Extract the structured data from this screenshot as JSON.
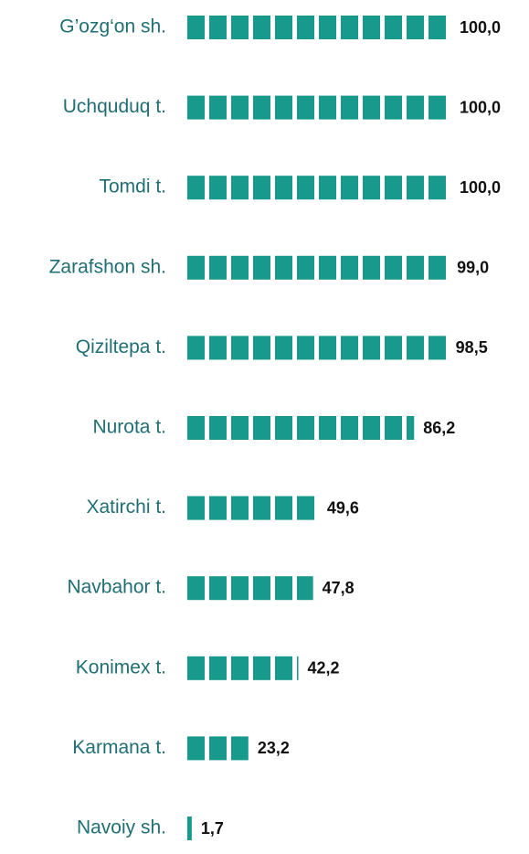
{
  "chart_data": {
    "type": "bar",
    "categories": [
      "G’ozg‘on sh.",
      "Uchquduq t.",
      "Tomdi t.",
      "Zarafshon sh.",
      "Qiziltepa t.",
      "Nurota t.",
      "Xatirchi t.",
      "Navbahor t.",
      "Konimex t.",
      "Karmana t.",
      "Navoiy sh."
    ],
    "values": [
      100.0,
      100.0,
      100.0,
      99.0,
      98.5,
      86.2,
      49.6,
      47.8,
      42.2,
      23.2,
      1.7
    ],
    "value_labels": [
      "100,0",
      "100,0",
      "100,0",
      "99,0",
      "98,5",
      "86,2",
      "49,6",
      "47,8",
      "42,2",
      "23,2",
      "1,7"
    ],
    "color": "#17998b"
  }
}
